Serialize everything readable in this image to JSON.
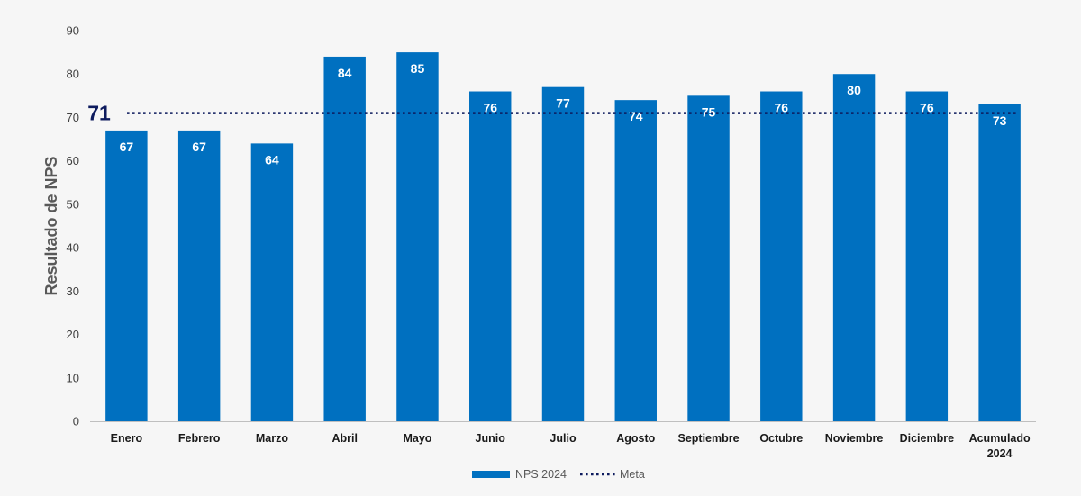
{
  "chart_data": {
    "type": "bar",
    "title": "",
    "xlabel": "",
    "ylabel": "Resultado de NPS",
    "ylim": [
      0,
      90
    ],
    "yticks": [
      0,
      10,
      20,
      30,
      40,
      50,
      60,
      70,
      80,
      90
    ],
    "categories": [
      "Enero",
      "Febrero",
      "Marzo",
      "Abril",
      "Mayo",
      "Junio",
      "Julio",
      "Agosto",
      "Septiembre",
      "Octubre",
      "Noviembre",
      "Diciembre",
      "Acumulado 2024"
    ],
    "series": [
      {
        "name": "NPS 2024",
        "type": "bar",
        "color": "#0070c0",
        "values": [
          67,
          67,
          64,
          84,
          85,
          76,
          77,
          74,
          75,
          76,
          80,
          76,
          73
        ]
      },
      {
        "name": "Meta",
        "type": "line",
        "style": "dotted",
        "color": "#0d1b5e",
        "value": 71,
        "label": "71"
      }
    ],
    "data_labels": true,
    "grid": false,
    "legend": "bottom-center"
  }
}
